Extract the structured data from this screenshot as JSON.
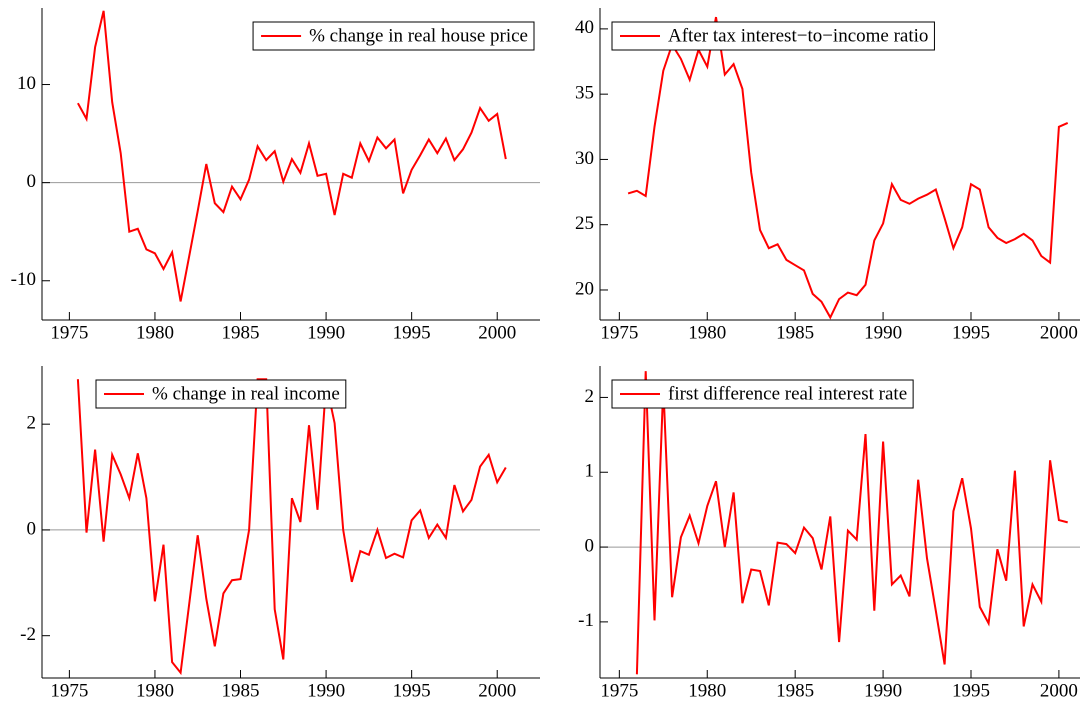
{
  "chart_data": [
    {
      "type": "line",
      "legend": "upper right",
      "zero_line": true,
      "x": [
        1975.5,
        1976,
        1976.5,
        1977,
        1977.5,
        1978,
        1978.5,
        1979,
        1979.5,
        1980,
        1980.5,
        1981,
        1981.5,
        1982,
        1982.5,
        1983,
        1983.5,
        1984,
        1984.5,
        1985,
        1985.5,
        1986,
        1986.5,
        1987,
        1987.5,
        1988,
        1988.5,
        1989,
        1989.5,
        1990,
        1990.5,
        1991,
        1991.5,
        1992,
        1992.5,
        1993,
        1993.5,
        1994,
        1994.5,
        1995,
        1995.5,
        1996,
        1996.5,
        1997,
        1997.5,
        1998,
        1998.5,
        1999,
        1999.5,
        2000,
        2000.5
      ],
      "series": [
        {
          "name": "% change in real house price",
          "color": "#ff0000",
          "values": [
            8.1,
            6.5,
            13.8,
            17.5,
            8.2,
            3,
            -5,
            -4.7,
            -6.8,
            -7.2,
            -8.8,
            -7.1,
            -12.1,
            -7.5,
            -2.9,
            1.9,
            -2.1,
            -3,
            -0.4,
            -1.7,
            0.3,
            3.7,
            2.3,
            3.2,
            0.1,
            2.4,
            1,
            4,
            0.7,
            0.9,
            -3.3,
            0.9,
            0.5,
            4,
            2.2,
            4.6,
            3.5,
            4.4,
            -1.1,
            1.3,
            2.8,
            4.4,
            3,
            4.5,
            2.3,
            3.4,
            5.1,
            7.6,
            6.3,
            7,
            2.4
          ]
        }
      ],
      "xlim": [
        1973.4,
        2002.5
      ],
      "ylim": [
        -14,
        17.8
      ],
      "xticks": [
        1975,
        1980,
        1985,
        1990,
        1995,
        2000
      ],
      "yticks": [
        -10,
        0,
        10
      ]
    },
    {
      "type": "line",
      "legend": "upper left",
      "zero_line": false,
      "x": [
        1975.5,
        1976,
        1976.5,
        1977,
        1977.5,
        1978,
        1978.5,
        1979,
        1979.5,
        1980,
        1980.5,
        1981,
        1981.5,
        1982,
        1982.5,
        1983,
        1983.5,
        1984,
        1984.5,
        1985,
        1985.5,
        1986,
        1986.5,
        1987,
        1987.5,
        1988,
        1988.5,
        1989,
        1989.5,
        1990,
        1990.5,
        1991,
        1991.5,
        1992,
        1992.5,
        1993,
        1993.5,
        1994,
        1994.5,
        1995,
        1995.5,
        1996,
        1996.5,
        1997,
        1997.5,
        1998,
        1998.5,
        1999,
        1999.5,
        2000,
        2000.5
      ],
      "series": [
        {
          "name": "After tax interest−to−income ratio",
          "color": "#ff0000",
          "values": [
            27.4,
            27.6,
            27.2,
            32.5,
            36.8,
            38.8,
            37.7,
            36.1,
            38.4,
            37.1,
            40.9,
            36.5,
            37.3,
            35.4,
            29,
            24.6,
            23.2,
            23.5,
            22.3,
            21.9,
            21.5,
            19.7,
            19.1,
            17.9,
            19.3,
            19.8,
            19.6,
            20.4,
            23.8,
            25.1,
            28.1,
            26.9,
            26.6,
            27,
            27.3,
            27.7,
            25.5,
            23.2,
            24.8,
            28.1,
            27.7,
            24.8,
            24,
            23.6,
            23.9,
            24.3,
            23.8,
            22.6,
            22.1,
            32.5,
            32.8
          ]
        }
      ],
      "xlim": [
        1973.9,
        2001.2
      ],
      "ylim": [
        17.7,
        41.6
      ],
      "xticks": [
        1975,
        1980,
        1985,
        1990,
        1995,
        2000
      ],
      "yticks": [
        20,
        25,
        30,
        35,
        40
      ]
    },
    {
      "type": "line",
      "legend": "upper center",
      "zero_line": true,
      "x": [
        1975.5,
        1976,
        1976.5,
        1977,
        1977.5,
        1978,
        1978.5,
        1979,
        1979.5,
        1980,
        1980.5,
        1981,
        1981.5,
        1982,
        1982.5,
        1983,
        1983.5,
        1984,
        1984.5,
        1985,
        1985.5,
        1986,
        1986.5,
        1987,
        1987.5,
        1988,
        1988.5,
        1989,
        1989.5,
        1990,
        1990.5,
        1991,
        1991.5,
        1992,
        1992.5,
        1993,
        1993.5,
        1994,
        1994.5,
        1995,
        1995.5,
        1996,
        1996.5,
        1997,
        1997.5,
        1998,
        1998.5,
        1999,
        1999.5,
        2000,
        2000.5
      ],
      "series": [
        {
          "name": "% change in real income",
          "color": "#ff0000",
          "values": [
            2.85,
            -0.05,
            1.52,
            -0.22,
            1.42,
            1.05,
            0.6,
            1.45,
            0.6,
            -1.35,
            -0.28,
            -2.5,
            -2.7,
            -1.4,
            -0.1,
            -1.3,
            -2.2,
            -1.2,
            -0.95,
            -0.93,
            0,
            2.85,
            2.85,
            -1.5,
            -2.45,
            0.6,
            0.15,
            1.98,
            0.38,
            2.78,
            2.02,
            0,
            -0.98,
            -0.4,
            -0.47,
            0,
            -0.53,
            -0.45,
            -0.52,
            0.18,
            0.37,
            -0.15,
            0.1,
            -0.15,
            0.85,
            0.35,
            0.57,
            1.2,
            1.42,
            0.9,
            1.18
          ]
        }
      ],
      "xlim": [
        1973.4,
        2002.5
      ],
      "ylim": [
        -2.8,
        3.1
      ],
      "xticks": [
        1975,
        1980,
        1985,
        1990,
        1995,
        2000
      ],
      "yticks": [
        -2,
        0,
        2
      ]
    },
    {
      "type": "line",
      "legend": "upper left",
      "zero_line": true,
      "x": [
        1976,
        1976.5,
        1977,
        1977.5,
        1978,
        1978.5,
        1979,
        1979.5,
        1980,
        1980.5,
        1981,
        1981.5,
        1982,
        1982.5,
        1983,
        1983.5,
        1984,
        1984.5,
        1985,
        1985.5,
        1986,
        1986.5,
        1987,
        1987.5,
        1988,
        1988.5,
        1989,
        1989.5,
        1990,
        1990.5,
        1991,
        1991.5,
        1992,
        1992.5,
        1993,
        1993.5,
        1994,
        1994.5,
        1995,
        1995.5,
        1996,
        1996.5,
        1997,
        1997.5,
        1998,
        1998.5,
        1999,
        1999.5,
        2000,
        2000.5
      ],
      "series": [
        {
          "name": "first difference real interest rate",
          "color": "#ff0000",
          "values": [
            -1.7,
            2.35,
            -0.98,
            2.15,
            -0.67,
            0.13,
            0.42,
            0.05,
            0.55,
            0.88,
            0,
            0.73,
            -0.75,
            -0.3,
            -0.32,
            -0.78,
            0.06,
            0.04,
            -0.08,
            0.26,
            0.12,
            -0.3,
            0.41,
            -1.27,
            0.22,
            0.1,
            1.51,
            -0.85,
            1.41,
            -0.5,
            -0.38,
            -0.66,
            0.9,
            -0.15,
            -0.85,
            -1.57,
            0.48,
            0.92,
            0.25,
            -0.8,
            -1.02,
            -0.03,
            -0.45,
            1.02,
            -1.06,
            -0.5,
            -0.73,
            1.16,
            0.36,
            0.33
          ]
        }
      ],
      "xlim": [
        1973.9,
        2001.2
      ],
      "ylim": [
        -1.75,
        2.42
      ],
      "xticks": [
        1975,
        1980,
        1985,
        1990,
        1995,
        2000
      ],
      "yticks": [
        -1,
        0,
        1,
        2
      ]
    }
  ]
}
